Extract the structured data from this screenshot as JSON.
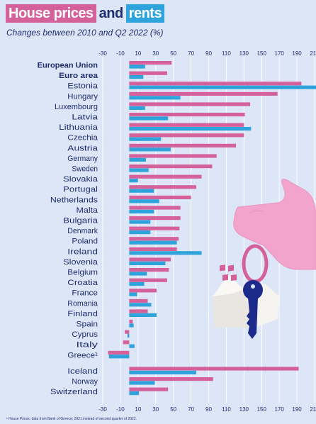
{
  "header": {
    "title_part1": "House prices",
    "title_part2": "and",
    "title_part3": "rents",
    "subtitle": "Changes between 2010 and Q2 2022 (%)"
  },
  "footnote": "¹ House Prices: data from Bank of Greece; 2021 instead of second quarter of 2022.",
  "colors": {
    "house_prices": "#d4619a",
    "rents": "#2fa3dc",
    "text": "#1f2d6e",
    "grid": "#ffffff",
    "background": "#dde6f6"
  },
  "chart_data": {
    "type": "bar",
    "orientation": "horizontal",
    "title": "House prices and rents",
    "subtitle": "Changes between 2010 and Q2 2022 (%)",
    "xlim": [
      -30,
      210
    ],
    "xticks": [
      -30,
      -10,
      10,
      30,
      50,
      70,
      90,
      110,
      130,
      150,
      170,
      190,
      210
    ],
    "grid": true,
    "categories": [
      "European Union",
      "Euro area",
      "Estonia",
      "Hungary",
      "Luxembourg",
      "Latvia",
      "Lithuania",
      "Czechia",
      "Austria",
      "Germany",
      "Sweden",
      "Slovakia",
      "Portugal",
      "Netherlands",
      "Malta",
      "Bulgaria",
      "Denmark",
      "Poland",
      "Ireland",
      "Slovenia",
      "Belgium",
      "Croatia",
      "France",
      "Romania",
      "Finland",
      "Spain",
      "Cyprus",
      "Italy",
      "Greece¹",
      "Iceland",
      "Norway",
      "Switzerland"
    ],
    "bold_categories": [
      "European Union",
      "Euro area"
    ],
    "series": [
      {
        "name": "House prices",
        "values": [
          48,
          43,
          195,
          168,
          137,
          131,
          130,
          130,
          121,
          99,
          94,
          82,
          76,
          70,
          58,
          58,
          57,
          56,
          54,
          47,
          45,
          43,
          31,
          21,
          21,
          4,
          -5,
          -7,
          -24,
          192,
          95,
          44
        ]
      },
      {
        "name": "Rents",
        "values": [
          18,
          16,
          212,
          58,
          18,
          44,
          138,
          36,
          47,
          19,
          22,
          10,
          28,
          34,
          28,
          24,
          24,
          54,
          82,
          41,
          20,
          17,
          9,
          25,
          31,
          5,
          -2,
          6,
          -23,
          76,
          29,
          11
        ]
      }
    ]
  }
}
